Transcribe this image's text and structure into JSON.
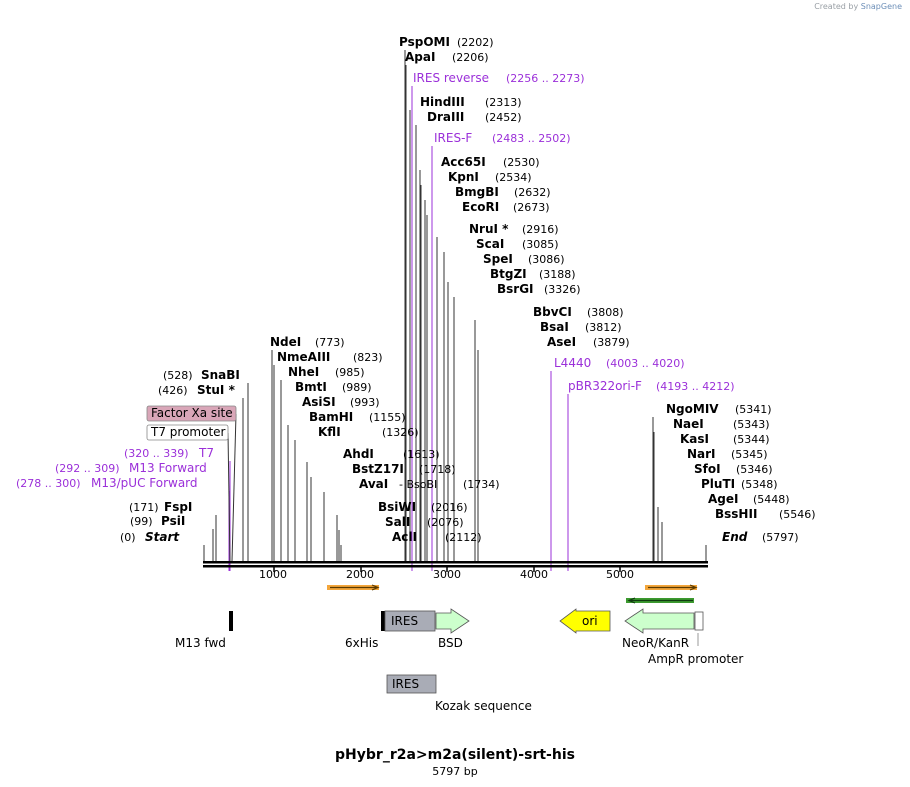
{
  "header": {
    "credit_prefix": "Created by",
    "credit_brand": "SnapGene"
  },
  "plasmid": {
    "name": "pHybr_r2a>m2a(silent)-srt-his",
    "size_label": "5797 bp"
  },
  "colors": {
    "enzyme": "#000000",
    "primer": "#9b30d9",
    "backbone": "#000000",
    "factor_xa_fill": "#d9a6b8",
    "ires_fill": "#a9acb6",
    "bsd_fill": "#ccffcc",
    "ori_fill": "#ffff00",
    "neor_fill": "#ccffcc",
    "arrow_orange": "#f3a63b",
    "arrow_green": "#3c9a2f"
  },
  "sites": [
    {
      "name": "PspOMI",
      "pos": "(2202)",
      "italic": false,
      "star": false
    },
    {
      "name": "ApaI",
      "pos": "(2206)",
      "italic": false,
      "star": false
    },
    {
      "name": "HindIII",
      "pos": "(2313)",
      "italic": false,
      "star": false
    },
    {
      "name": "DraIII",
      "pos": "(2452)",
      "italic": false,
      "star": false
    },
    {
      "name": "Acc65I",
      "pos": "(2530)",
      "italic": false,
      "star": false
    },
    {
      "name": "KpnI",
      "pos": "(2534)",
      "italic": false,
      "star": false
    },
    {
      "name": "BmgBI",
      "pos": "(2632)",
      "italic": false,
      "star": false
    },
    {
      "name": "EcoRI",
      "pos": "(2673)",
      "italic": false,
      "star": false
    },
    {
      "name": "NruI *",
      "pos": "(2916)",
      "italic": false,
      "star": false
    },
    {
      "name": "ScaI",
      "pos": "(3085)",
      "italic": false,
      "star": false
    },
    {
      "name": "SpeI",
      "pos": "(3086)",
      "italic": false,
      "star": false
    },
    {
      "name": "BtgZI",
      "pos": "(3188)",
      "italic": false,
      "star": false
    },
    {
      "name": "BsrGI",
      "pos": "(3326)",
      "italic": false,
      "star": false
    },
    {
      "name": "BbvCI",
      "pos": "(3808)",
      "italic": false,
      "star": false
    },
    {
      "name": "BsaI",
      "pos": "(3812)",
      "italic": false,
      "star": false
    },
    {
      "name": "AseI",
      "pos": "(3879)",
      "italic": false,
      "star": false
    },
    {
      "name": "NdeI",
      "pos": "(773)",
      "italic": false,
      "star": false
    },
    {
      "name": "NmeAIII",
      "pos": "(823)",
      "italic": false,
      "star": false
    },
    {
      "name": "NheI",
      "pos": "(985)",
      "italic": false,
      "star": false
    },
    {
      "name": "BmtI",
      "pos": "(989)",
      "italic": false,
      "star": false
    },
    {
      "name": "AsiSI",
      "pos": "(993)",
      "italic": false,
      "star": false
    },
    {
      "name": "BamHI",
      "pos": "(1155)",
      "italic": false,
      "star": false
    },
    {
      "name": "KflI",
      "pos": "(1326)",
      "italic": false,
      "star": false
    },
    {
      "name": "AhdI",
      "pos": "(1613)",
      "italic": false,
      "star": false
    },
    {
      "name": "BstZ17I",
      "pos": "(1718)",
      "italic": false,
      "star": false
    },
    {
      "name": "AvaI",
      "pos": "- BsoBI",
      "italic": false,
      "star": false
    },
    {
      "name": "BsiWI",
      "pos": "(2016)",
      "italic": false,
      "star": false
    },
    {
      "name": "SalI",
      "pos": "(2076)",
      "italic": false,
      "star": false
    },
    {
      "name": "AclI",
      "pos": "(2112)",
      "italic": false,
      "star": false
    },
    {
      "name": "NgoMIV",
      "pos": "(5341)",
      "italic": false,
      "star": false
    },
    {
      "name": "NaeI",
      "pos": "(5343)",
      "italic": false,
      "star": false
    },
    {
      "name": "KasI",
      "pos": "(5344)",
      "italic": false,
      "star": false
    },
    {
      "name": "NarI",
      "pos": "(5345)",
      "italic": false,
      "star": false
    },
    {
      "name": "SfoI",
      "pos": "(5346)",
      "italic": false,
      "star": false
    },
    {
      "name": "PluTI",
      "pos": "(5348)",
      "italic": false,
      "star": false
    },
    {
      "name": "AgeI",
      "pos": "(5448)",
      "italic": false,
      "star": false
    },
    {
      "name": "BssHII",
      "pos": "(5546)",
      "italic": false,
      "star": false
    },
    {
      "name": "End",
      "pos": "(5797)",
      "italic": true,
      "star": false
    }
  ],
  "left_sites": [
    {
      "name": "SnaBI",
      "pos": "(528)",
      "italic": false
    },
    {
      "name": "StuI *",
      "pos": "(426)",
      "italic": false
    },
    {
      "name": "FspI",
      "pos": "(171)",
      "italic": false
    },
    {
      "name": "PsiI",
      "pos": "(99)",
      "italic": false
    },
    {
      "name": "Start",
      "pos": "(0)",
      "italic": true
    }
  ],
  "extra_pos": {
    "bsobi_pos": "(1734)",
    "bsiwi_pos": "(2016)"
  },
  "primers": [
    {
      "name": "IRES reverse",
      "range": "(2256 .. 2273)"
    },
    {
      "name": "IRES-F",
      "range": "(2483 .. 2502)"
    },
    {
      "name": "L4440",
      "range": "(4003 .. 4020)"
    },
    {
      "name": "pBR322ori-F",
      "range": "(4193 .. 4212)"
    },
    {
      "name": "T7",
      "range": "(320 .. 339)"
    },
    {
      "name": "M13 Forward",
      "range": "(292 .. 309)"
    },
    {
      "name": "M13/pUC Forward",
      "range": "(278 .. 300)"
    }
  ],
  "boxed_features": {
    "factor_xa": "Factor Xa site",
    "t7_promoter": "T7 promoter"
  },
  "ruler": {
    "ticks": [
      "1000",
      "2000",
      "3000",
      "4000",
      "5000"
    ]
  },
  "features": {
    "m13_fwd": "M13 fwd",
    "his": "6xHis",
    "bsd": "BSD",
    "ires": "IRES",
    "ori": "ori",
    "neor": "NeoR/KanR",
    "ampr_promoter": "AmpR promoter",
    "ires2": "IRES",
    "kozak": "Kozak sequence"
  }
}
